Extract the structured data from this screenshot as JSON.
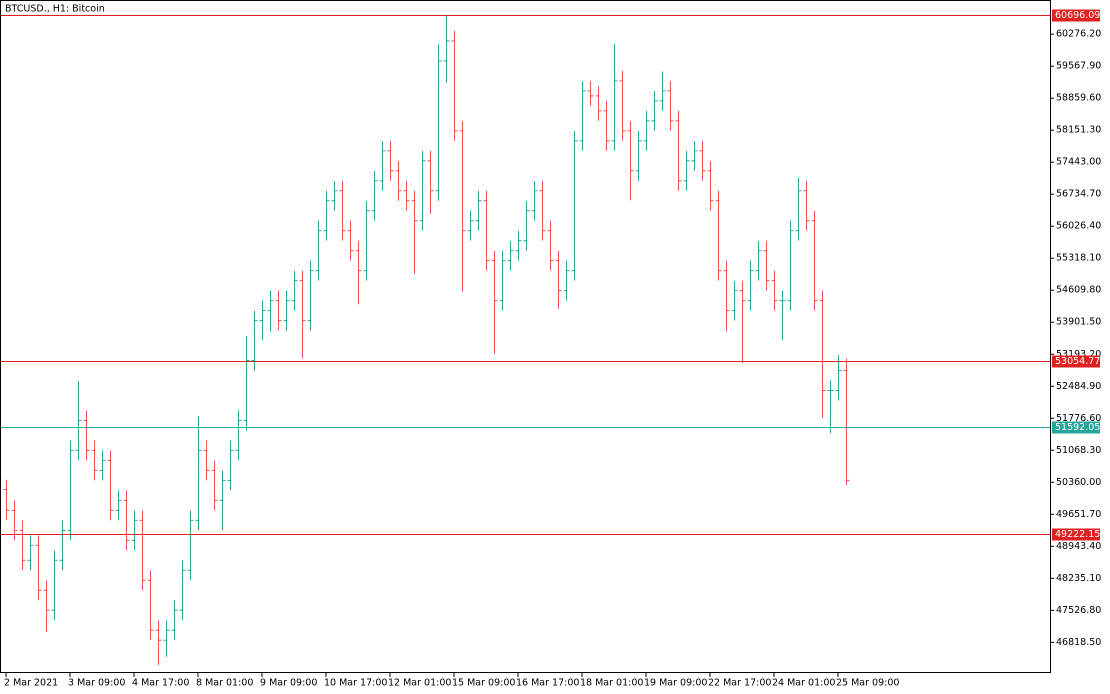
{
  "chart_data": {
    "type": "ohlc",
    "title": "BTCUSD., H1:  Bitcoin",
    "categories": [
      "2 Mar 2021",
      null,
      null,
      null,
      null,
      null,
      null,
      null,
      "3 Mar 09:00",
      null,
      null,
      null,
      null,
      null,
      null,
      null,
      "4 Mar 17:00",
      null,
      null,
      null,
      null,
      null,
      null,
      null,
      "8 Mar 01:00",
      null,
      null,
      null,
      null,
      null,
      null,
      null,
      "9 Mar 09:00",
      null,
      null,
      null,
      null,
      null,
      null,
      null,
      "10 Mar 17:00",
      null,
      null,
      null,
      null,
      null,
      null,
      null,
      "12 Mar 01:00",
      null,
      null,
      null,
      null,
      null,
      null,
      null,
      "15 Mar 09:00",
      null,
      null,
      null,
      null,
      null,
      null,
      null,
      "16 Mar 17:00",
      null,
      null,
      null,
      null,
      null,
      null,
      null,
      "18 Mar 01:00",
      null,
      null,
      null,
      null,
      null,
      null,
      null,
      "19 Mar 09:00",
      null,
      null,
      null,
      null,
      null,
      null,
      null,
      "22 Mar 17:00",
      null,
      null,
      null,
      null,
      null,
      null,
      null,
      "24 Mar 01:00",
      null,
      null,
      null,
      null,
      null,
      null,
      null,
      "25 Mar 09:00",
      null
    ],
    "bars": [
      [
        50200,
        50420,
        49519,
        49739
      ],
      [
        49739,
        49959,
        49077,
        49297
      ],
      [
        49297,
        49517,
        48414,
        48634
      ],
      [
        48634,
        49185,
        48414,
        48965
      ],
      [
        48965,
        49185,
        47751,
        47971
      ],
      [
        47971,
        48191,
        47050,
        47529
      ],
      [
        47529,
        48854,
        47309,
        48634
      ],
      [
        48634,
        49517,
        48414,
        49297
      ],
      [
        49297,
        51285,
        49077,
        51065
      ],
      [
        51065,
        52600,
        50845,
        51728
      ],
      [
        51728,
        51948,
        50845,
        51065
      ],
      [
        51065,
        51285,
        50403,
        50623
      ],
      [
        50623,
        51064,
        50403,
        50844
      ],
      [
        50844,
        51064,
        49519,
        49739
      ],
      [
        49739,
        50180,
        49519,
        49960
      ],
      [
        49960,
        50180,
        48856,
        49076
      ],
      [
        49076,
        49738,
        48856,
        49518
      ],
      [
        49518,
        49738,
        47972,
        48192
      ],
      [
        48192,
        48412,
        46867,
        47087
      ],
      [
        47087,
        47307,
        46320,
        46866
      ],
      [
        46866,
        47307,
        46500,
        47087
      ],
      [
        47087,
        47749,
        46867,
        47529
      ],
      [
        47529,
        48633,
        47309,
        48413
      ],
      [
        48413,
        49738,
        48193,
        49518
      ],
      [
        49518,
        51830,
        49298,
        51065
      ],
      [
        51065,
        51285,
        50403,
        50623
      ],
      [
        50623,
        50843,
        49740,
        49960
      ],
      [
        49960,
        50622,
        49300,
        50402
      ],
      [
        50402,
        51285,
        50182,
        51065
      ],
      [
        51065,
        51948,
        50845,
        51728
      ],
      [
        51728,
        53600,
        51508,
        53054
      ],
      [
        53054,
        54158,
        52834,
        53938
      ],
      [
        53938,
        54379,
        53500,
        54159
      ],
      [
        54159,
        54600,
        53700,
        54380
      ],
      [
        54380,
        54600,
        53718,
        53938
      ],
      [
        53938,
        54600,
        53718,
        54380
      ],
      [
        54380,
        55042,
        54160,
        54822
      ],
      [
        54822,
        55042,
        53100,
        53938
      ],
      [
        53938,
        55263,
        53718,
        55043
      ],
      [
        55043,
        56147,
        54823,
        55927
      ],
      [
        55927,
        56810,
        55707,
        56590
      ],
      [
        56590,
        57031,
        56370,
        56811
      ],
      [
        56811,
        57031,
        55707,
        55927
      ],
      [
        55927,
        56147,
        55265,
        55485
      ],
      [
        55485,
        55705,
        54300,
        55043
      ],
      [
        55043,
        56589,
        54823,
        56369
      ],
      [
        56369,
        57252,
        56149,
        57032
      ],
      [
        57032,
        57915,
        56812,
        57695
      ],
      [
        57695,
        57915,
        57033,
        57253
      ],
      [
        57253,
        57473,
        56591,
        56811
      ],
      [
        56811,
        57031,
        56370,
        56590
      ],
      [
        56590,
        56810,
        54970,
        56148
      ],
      [
        56148,
        57694,
        55928,
        57474
      ],
      [
        57474,
        57694,
        56300,
        56811
      ],
      [
        56811,
        60050,
        56591,
        59684
      ],
      [
        59684,
        60696,
        59200,
        60126
      ],
      [
        60126,
        60346,
        57917,
        58137
      ],
      [
        58137,
        58357,
        54580,
        55927
      ],
      [
        55927,
        56368,
        55707,
        56148
      ],
      [
        56148,
        56810,
        55928,
        56590
      ],
      [
        56590,
        56810,
        55044,
        55264
      ],
      [
        55264,
        55484,
        53200,
        54380
      ],
      [
        54380,
        55484,
        54160,
        55264
      ],
      [
        55264,
        55705,
        55044,
        55485
      ],
      [
        55485,
        55926,
        55265,
        55706
      ],
      [
        55706,
        56589,
        55486,
        56369
      ],
      [
        56369,
        57031,
        56149,
        56811
      ],
      [
        56811,
        57031,
        55707,
        55927
      ],
      [
        55927,
        56147,
        55044,
        55264
      ],
      [
        55264,
        55484,
        54200,
        54601
      ],
      [
        54601,
        55263,
        54381,
        55043
      ],
      [
        55043,
        58136,
        54823,
        57916
      ],
      [
        57916,
        59241,
        57696,
        59021
      ],
      [
        59021,
        59241,
        58690,
        58910
      ],
      [
        58910,
        59130,
        58359,
        58579
      ],
      [
        58579,
        58799,
        57696,
        57916
      ],
      [
        57916,
        60060,
        57696,
        59242
      ],
      [
        59242,
        59462,
        57917,
        58137
      ],
      [
        58137,
        58357,
        56600,
        57253
      ],
      [
        57253,
        58136,
        57033,
        57916
      ],
      [
        57916,
        58578,
        57696,
        58358
      ],
      [
        58358,
        59020,
        58138,
        58800
      ],
      [
        58800,
        59450,
        58580,
        59021
      ],
      [
        59021,
        59241,
        58138,
        58358
      ],
      [
        58358,
        58578,
        56812,
        57032
      ],
      [
        57032,
        57694,
        56812,
        57474
      ],
      [
        57474,
        57915,
        57254,
        57695
      ],
      [
        57695,
        57915,
        57033,
        57253
      ],
      [
        57253,
        57473,
        56370,
        56590
      ],
      [
        56590,
        56810,
        54823,
        55043
      ],
      [
        55043,
        55263,
        53700,
        54159
      ],
      [
        54159,
        54821,
        53939,
        54601
      ],
      [
        54601,
        54821,
        53000,
        54380
      ],
      [
        54380,
        55263,
        54160,
        55043
      ],
      [
        55043,
        55705,
        54823,
        55485
      ],
      [
        55485,
        55705,
        54602,
        54822
      ],
      [
        54822,
        55042,
        54160,
        54380
      ],
      [
        54380,
        54600,
        53500,
        54380
      ],
      [
        54380,
        56147,
        54160,
        55927
      ],
      [
        55927,
        57100,
        55707,
        56811
      ],
      [
        56811,
        57031,
        55928,
        56148
      ],
      [
        56148,
        56368,
        54160,
        54380
      ],
      [
        54380,
        54600,
        51780,
        52391
      ],
      [
        52391,
        52611,
        51450,
        52391
      ],
      [
        52391,
        53170,
        52171,
        52833
      ],
      [
        52833,
        53100,
        50300,
        50402
      ]
    ],
    "up_color": "#26a69a",
    "down_color": "#ef5350",
    "ylim": [
      46140,
      61010
    ],
    "yticks": [
      {
        "value": 60276.2,
        "label": "60276.20"
      },
      {
        "value": 59567.9,
        "label": "59567.90"
      },
      {
        "value": 58859.6,
        "label": "58859.60"
      },
      {
        "value": 58151.3,
        "label": "58151.30"
      },
      {
        "value": 57443,
        "label": "57443.00"
      },
      {
        "value": 56734.7,
        "label": "56734.70"
      },
      {
        "value": 56026.4,
        "label": "56026.40"
      },
      {
        "value": 55318.1,
        "label": "55318.10"
      },
      {
        "value": 54609.8,
        "label": "54609.80"
      },
      {
        "value": 53901.5,
        "label": "53901.50"
      },
      {
        "value": 53193.2,
        "label": "53193.20"
      },
      {
        "value": 52484.9,
        "label": "52484.90"
      },
      {
        "value": 51776.6,
        "label": "51776.60"
      },
      {
        "value": 51068.3,
        "label": "51068.30"
      },
      {
        "value": 50360,
        "label": "50360.00"
      },
      {
        "value": 49651.7,
        "label": "49651.70"
      },
      {
        "value": 48943.4,
        "label": "48943.40"
      },
      {
        "value": 48235.1,
        "label": "48235.10"
      },
      {
        "value": 47526.8,
        "label": "47526.80"
      },
      {
        "value": 46818.5,
        "label": "46818.50"
      }
    ],
    "hlines": [
      {
        "value": 60696.09,
        "color": "#e02020"
      },
      {
        "value": 53054.77,
        "color": "#e02020"
      },
      {
        "value": 51592.05,
        "color": "#26a69a"
      },
      {
        "value": 49222.15,
        "color": "#e02020"
      }
    ]
  }
}
